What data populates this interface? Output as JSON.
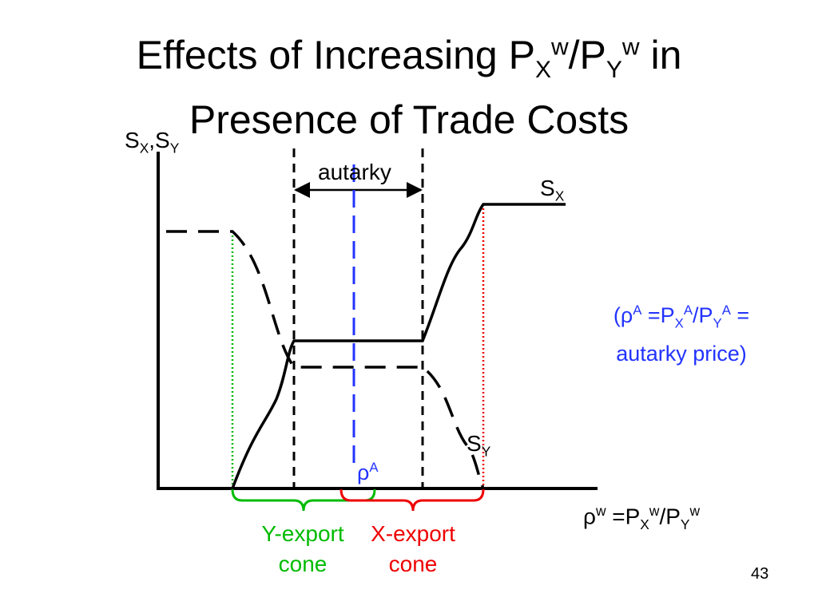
{
  "title": {
    "line1_prefix": "Effects of Increasing P",
    "sub_x": "X",
    "sup_w1": "w",
    "slash": "/P",
    "sub_y": "Y",
    "sup_w2": "w",
    "line1_suffix": " in",
    "line2": "Presence of Trade Costs"
  },
  "y_axis_label": {
    "s1": "S",
    "sub1": "X",
    "sep": ",S",
    "sub2": "Y"
  },
  "x_axis_label": {
    "rho": "ρ",
    "sup_w1": "w",
    "mid": " =P",
    "sub_x": "X",
    "sup_w2": "w",
    "slash": "/P",
    "sub_y": "Y",
    "sup_w3": "w"
  },
  "labels": {
    "autarky": "autarky",
    "sx": {
      "s": "S",
      "sub": "X"
    },
    "sy": {
      "s": "S",
      "sub": "Y"
    },
    "rho_a": {
      "rho": "ρ",
      "sup": "A"
    }
  },
  "note": {
    "line1_a": "(ρ",
    "sup_a1": "A",
    "line1_b": " =P",
    "sub_x": "X",
    "sup_a2": "A",
    "line1_c": "/P",
    "sub_y": "Y",
    "sup_a3": "A",
    "line1_d": " =",
    "line2": "autarky price)"
  },
  "cones": {
    "y_export": {
      "line1": "Y-export",
      "line2": "cone"
    },
    "x_export": {
      "line1": "X-export",
      "line2": "cone"
    }
  },
  "slide_number": "43",
  "colors": {
    "axis": "#000000",
    "autarky_price": "#2233ff",
    "y_cone": "#00bb00",
    "x_cone": "#ee0000"
  }
}
